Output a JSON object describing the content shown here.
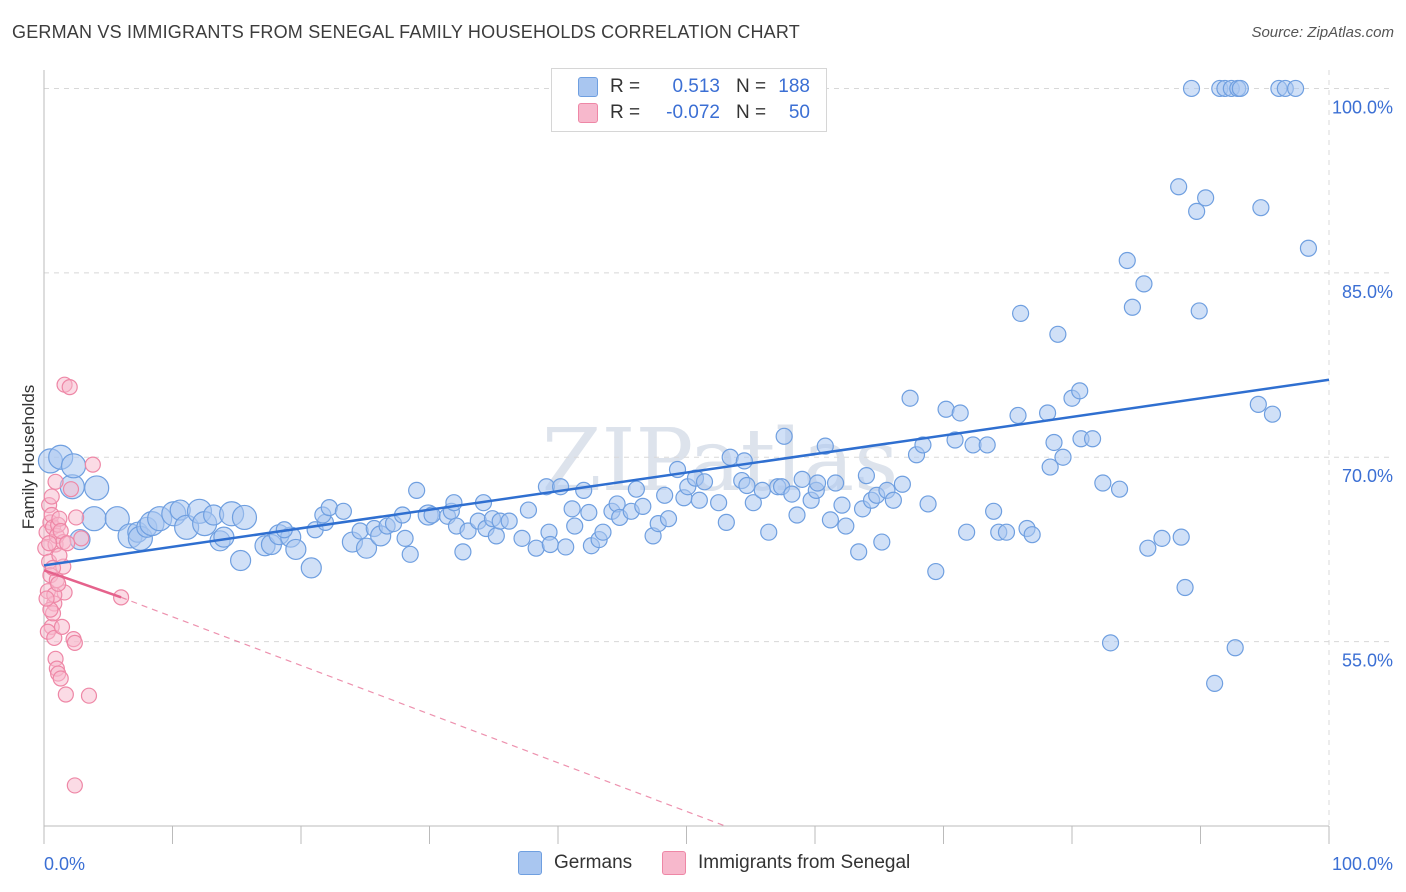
{
  "header": {
    "title": "GERMAN VS IMMIGRANTS FROM SENEGAL FAMILY HOUSEHOLDS CORRELATION CHART",
    "source": "Source: ZipAtlas.com"
  },
  "watermark": "ZIPatlas",
  "colors": {
    "german_fill": "#a9c6f0",
    "german_stroke": "#6f9fe0",
    "german_line": "#2f6fd0",
    "senegal_fill": "#f7b8cc",
    "senegal_stroke": "#ee87a6",
    "senegal_line": "#e5628c",
    "axis_value": "#3b6fd4",
    "grid": "#d8d8d8"
  },
  "legend": {
    "rows": [
      {
        "r_label": "R =",
        "r_value": "0.513",
        "n_label": "N =",
        "n_value": "188"
      },
      {
        "r_label": "R =",
        "r_value": "-0.072",
        "n_label": "N =",
        "n_value": "50"
      }
    ]
  },
  "bottom_legend": {
    "germans": "Germans",
    "senegal": "Immigrants from Senegal"
  },
  "chart_data": {
    "type": "scatter",
    "title": "GERMAN VS IMMIGRANTS FROM SENEGAL FAMILY HOUSEHOLDS CORRELATION CHART",
    "xlabel": "",
    "ylabel": "Family Households",
    "xlim": [
      0,
      100
    ],
    "ylim": [
      40,
      101.5
    ],
    "x_tick_labels": [
      "0.0%",
      "100.0%"
    ],
    "y_ticks": [
      55,
      70,
      85,
      100
    ],
    "y_tick_labels": [
      "55.0%",
      "70.0%",
      "85.0%",
      "100.0%"
    ],
    "grid": true,
    "series": [
      {
        "name": "Germans",
        "trend": {
          "x": [
            0,
            100
          ],
          "y": [
            61.2,
            76.3
          ]
        },
        "points": [
          [
            0.5,
            69.7,
            3
          ],
          [
            1.3,
            70.0,
            3
          ],
          [
            2.2,
            67.6,
            3
          ],
          [
            2.3,
            69.3,
            3
          ],
          [
            4.1,
            67.5,
            3
          ],
          [
            2.8,
            63.3,
            2
          ],
          [
            3.9,
            65.0,
            3
          ],
          [
            5.7,
            65.0,
            3
          ],
          [
            6.7,
            63.6,
            3
          ],
          [
            7.3,
            63.9,
            2
          ],
          [
            7.5,
            63.4,
            3
          ],
          [
            8.0,
            64.3,
            2
          ],
          [
            8.4,
            64.6,
            3
          ],
          [
            9.0,
            65.0,
            3
          ],
          [
            10.1,
            65.4,
            3
          ],
          [
            10.6,
            65.7,
            2
          ],
          [
            11.1,
            64.3,
            3
          ],
          [
            12.1,
            65.6,
            3
          ],
          [
            12.5,
            64.6,
            3
          ],
          [
            13.7,
            63.2,
            2
          ],
          [
            14.0,
            63.5,
            2
          ],
          [
            13.2,
            65.3,
            2
          ],
          [
            14.6,
            65.4,
            3
          ],
          [
            15.6,
            65.1,
            3
          ],
          [
            15.3,
            61.6,
            2
          ],
          [
            17.2,
            62.8,
            2
          ],
          [
            17.7,
            62.9,
            2
          ],
          [
            18.3,
            63.7,
            2
          ],
          [
            19.2,
            63.5,
            2
          ],
          [
            18.7,
            64.1,
            1
          ],
          [
            19.6,
            62.5,
            2
          ],
          [
            20.8,
            61.0,
            2
          ],
          [
            21.1,
            64.1,
            1
          ],
          [
            21.9,
            64.7,
            1
          ],
          [
            21.7,
            65.3,
            1
          ],
          [
            22.2,
            65.9,
            1
          ],
          [
            23.3,
            65.6,
            1
          ],
          [
            24.0,
            63.1,
            2
          ],
          [
            24.6,
            64.0,
            1
          ],
          [
            25.1,
            62.6,
            2
          ],
          [
            25.7,
            64.2,
            1
          ],
          [
            26.2,
            63.6,
            2
          ],
          [
            26.7,
            64.4,
            1
          ],
          [
            27.2,
            64.6,
            1
          ],
          [
            27.9,
            65.3,
            1
          ],
          [
            28.1,
            63.4,
            1
          ],
          [
            28.5,
            62.1,
            1
          ],
          [
            29.0,
            67.3,
            1
          ],
          [
            29.9,
            65.3,
            2
          ],
          [
            30.2,
            65.3,
            1
          ],
          [
            31.4,
            65.2,
            1
          ],
          [
            31.7,
            65.6,
            1
          ],
          [
            31.9,
            66.3,
            1
          ],
          [
            32.1,
            64.4,
            1
          ],
          [
            32.6,
            62.3,
            1
          ],
          [
            33.0,
            64.0,
            1
          ],
          [
            33.8,
            64.8,
            1
          ],
          [
            34.2,
            66.3,
            1
          ],
          [
            34.4,
            64.2,
            1
          ],
          [
            34.9,
            65.0,
            1
          ],
          [
            35.2,
            63.6,
            1
          ],
          [
            35.5,
            64.8,
            1
          ],
          [
            36.2,
            64.8,
            1
          ],
          [
            37.2,
            63.4,
            1
          ],
          [
            37.7,
            65.7,
            1
          ],
          [
            38.3,
            62.6,
            1
          ],
          [
            39.1,
            67.6,
            1
          ],
          [
            39.3,
            63.9,
            1
          ],
          [
            39.4,
            62.9,
            1
          ],
          [
            40.2,
            67.6,
            1
          ],
          [
            40.6,
            62.7,
            1
          ],
          [
            41.1,
            65.8,
            1
          ],
          [
            41.3,
            64.4,
            1
          ],
          [
            42.0,
            67.3,
            1
          ],
          [
            42.4,
            65.5,
            1
          ],
          [
            42.6,
            62.8,
            1
          ],
          [
            43.2,
            63.3,
            1
          ],
          [
            43.5,
            63.9,
            1
          ],
          [
            44.2,
            65.6,
            1
          ],
          [
            44.6,
            66.2,
            1
          ],
          [
            44.8,
            65.1,
            1
          ],
          [
            45.7,
            65.6,
            1
          ],
          [
            46.1,
            67.4,
            1
          ],
          [
            46.6,
            66.0,
            1
          ],
          [
            47.4,
            63.6,
            1
          ],
          [
            47.8,
            64.6,
            1
          ],
          [
            48.3,
            66.9,
            1
          ],
          [
            48.6,
            65.0,
            1
          ],
          [
            49.3,
            69.0,
            1
          ],
          [
            49.8,
            66.7,
            1
          ],
          [
            50.1,
            67.6,
            1
          ],
          [
            50.7,
            68.3,
            1
          ],
          [
            51.0,
            66.5,
            1
          ],
          [
            51.4,
            68.0,
            1
          ],
          [
            52.5,
            66.3,
            1
          ],
          [
            53.1,
            64.7,
            1
          ],
          [
            53.4,
            70.0,
            1
          ],
          [
            54.5,
            69.7,
            1
          ],
          [
            54.3,
            68.1,
            1
          ],
          [
            54.7,
            67.7,
            1
          ],
          [
            55.2,
            66.3,
            1
          ],
          [
            55.9,
            67.3,
            1
          ],
          [
            56.4,
            63.9,
            1
          ],
          [
            57.1,
            67.6,
            1
          ],
          [
            57.4,
            67.6,
            1
          ],
          [
            57.6,
            71.7,
            1
          ],
          [
            58.2,
            67.0,
            1
          ],
          [
            58.6,
            65.3,
            1
          ],
          [
            59.0,
            68.2,
            1
          ],
          [
            59.7,
            66.5,
            1
          ],
          [
            60.1,
            67.3,
            1
          ],
          [
            60.8,
            70.9,
            1
          ],
          [
            60.2,
            67.9,
            1
          ],
          [
            61.2,
            64.9,
            1
          ],
          [
            61.6,
            67.9,
            1
          ],
          [
            62.1,
            66.1,
            1
          ],
          [
            62.4,
            64.4,
            1
          ],
          [
            63.4,
            62.3,
            1
          ],
          [
            63.7,
            65.8,
            1
          ],
          [
            64.0,
            68.5,
            1
          ],
          [
            64.4,
            66.5,
            1
          ],
          [
            64.8,
            66.9,
            1
          ],
          [
            65.2,
            63.1,
            1
          ],
          [
            65.6,
            67.3,
            1
          ],
          [
            66.1,
            66.5,
            1
          ],
          [
            66.8,
            67.8,
            1
          ],
          [
            67.4,
            74.8,
            1
          ],
          [
            67.9,
            70.2,
            1
          ],
          [
            68.4,
            71.0,
            1
          ],
          [
            68.8,
            66.2,
            1
          ],
          [
            69.4,
            60.7,
            1
          ],
          [
            70.2,
            73.9,
            1
          ],
          [
            70.9,
            71.4,
            1
          ],
          [
            71.3,
            73.6,
            1
          ],
          [
            71.8,
            63.9,
            1
          ],
          [
            72.3,
            71.0,
            1
          ],
          [
            73.4,
            71.0,
            1
          ],
          [
            73.9,
            65.6,
            1
          ],
          [
            74.3,
            63.9,
            1
          ],
          [
            74.9,
            63.9,
            1
          ],
          [
            75.8,
            73.4,
            1
          ],
          [
            76.0,
            81.7,
            1
          ],
          [
            76.5,
            64.2,
            1
          ],
          [
            76.9,
            63.7,
            1
          ],
          [
            78.1,
            73.6,
            1
          ],
          [
            78.3,
            69.2,
            1
          ],
          [
            78.6,
            71.2,
            1
          ],
          [
            78.9,
            80.0,
            1
          ],
          [
            79.3,
            70.0,
            1
          ],
          [
            80.0,
            74.8,
            1
          ],
          [
            80.6,
            75.4,
            1
          ],
          [
            80.7,
            71.5,
            1
          ],
          [
            81.6,
            71.5,
            1
          ],
          [
            82.4,
            67.9,
            1
          ],
          [
            83.0,
            54.9,
            1
          ],
          [
            83.7,
            67.4,
            1
          ],
          [
            84.3,
            86.0,
            1
          ],
          [
            84.7,
            82.2,
            1
          ],
          [
            85.6,
            84.1,
            1
          ],
          [
            85.9,
            62.6,
            1
          ],
          [
            87.0,
            63.4,
            1
          ],
          [
            88.3,
            92.0,
            1
          ],
          [
            88.5,
            63.5,
            1
          ],
          [
            88.8,
            59.4,
            1
          ],
          [
            89.3,
            100.0,
            1
          ],
          [
            89.7,
            90.0,
            1
          ],
          [
            89.9,
            81.9,
            1
          ],
          [
            90.4,
            91.1,
            1
          ],
          [
            91.1,
            51.6,
            1
          ],
          [
            91.5,
            100.0,
            1
          ],
          [
            91.9,
            100.0,
            1
          ],
          [
            92.4,
            100.0,
            1
          ],
          [
            92.7,
            54.5,
            1
          ],
          [
            92.9,
            100.0,
            1
          ],
          [
            93.1,
            100.0,
            1
          ],
          [
            94.5,
            74.3,
            1
          ],
          [
            94.7,
            90.3,
            1
          ],
          [
            95.6,
            73.5,
            1
          ],
          [
            96.1,
            100.0,
            1
          ],
          [
            96.6,
            100.0,
            1
          ],
          [
            97.4,
            100.0,
            1
          ],
          [
            98.4,
            87.0,
            1
          ]
        ]
      },
      {
        "name": "Immigrants from Senegal",
        "trend_solid": {
          "x": [
            0,
            6.0
          ],
          "y": [
            60.8,
            58.6
          ]
        },
        "trend_dashed": {
          "x": [
            6.0,
            53.0
          ],
          "y": [
            58.6,
            40.0
          ]
        },
        "points": [
          [
            0.1,
            62.6,
            1
          ],
          [
            0.2,
            63.9,
            1
          ],
          [
            0.3,
            59.1,
            1
          ],
          [
            0.4,
            61.5,
            1
          ],
          [
            0.5,
            64.7,
            1
          ],
          [
            0.4,
            66.1,
            1
          ],
          [
            0.6,
            65.3,
            1
          ],
          [
            0.7,
            64.3,
            1
          ],
          [
            0.8,
            58.1,
            1
          ],
          [
            0.5,
            60.4,
            1
          ],
          [
            0.6,
            56.2,
            1
          ],
          [
            0.7,
            57.3,
            1
          ],
          [
            0.9,
            62.9,
            1
          ],
          [
            1.0,
            63.6,
            1
          ],
          [
            1.1,
            64.5,
            1
          ],
          [
            1.2,
            65.0,
            1
          ],
          [
            0.3,
            55.8,
            1
          ],
          [
            0.8,
            55.3,
            1
          ],
          [
            0.9,
            53.6,
            1
          ],
          [
            1.0,
            52.8,
            1
          ],
          [
            1.1,
            52.4,
            1
          ],
          [
            1.3,
            52.0,
            1
          ],
          [
            1.4,
            56.2,
            1
          ],
          [
            1.5,
            61.1,
            1
          ],
          [
            1.6,
            59.0,
            1
          ],
          [
            1.5,
            63.1,
            1
          ],
          [
            1.7,
            50.7,
            1
          ],
          [
            2.3,
            55.2,
            1
          ],
          [
            2.4,
            54.9,
            1
          ],
          [
            1.6,
            75.9,
            1
          ],
          [
            2.0,
            75.7,
            1
          ],
          [
            2.1,
            67.4,
            1
          ],
          [
            2.5,
            65.1,
            1
          ],
          [
            2.9,
            63.4,
            1
          ],
          [
            3.5,
            50.6,
            1
          ],
          [
            3.8,
            69.4,
            1
          ],
          [
            6.0,
            58.6,
            1
          ],
          [
            2.4,
            43.3,
            1
          ],
          [
            0.6,
            66.8,
            1
          ],
          [
            0.9,
            68.0,
            1
          ],
          [
            0.5,
            57.6,
            1
          ],
          [
            0.8,
            58.8,
            1
          ],
          [
            1.2,
            62.0,
            1
          ],
          [
            0.4,
            63.0,
            1
          ],
          [
            1.0,
            60.0,
            1
          ],
          [
            1.3,
            64.0,
            1
          ],
          [
            0.7,
            61.0,
            1
          ],
          [
            1.8,
            63.0,
            1
          ],
          [
            0.2,
            58.5,
            1
          ],
          [
            1.1,
            59.7,
            1
          ]
        ]
      }
    ]
  }
}
